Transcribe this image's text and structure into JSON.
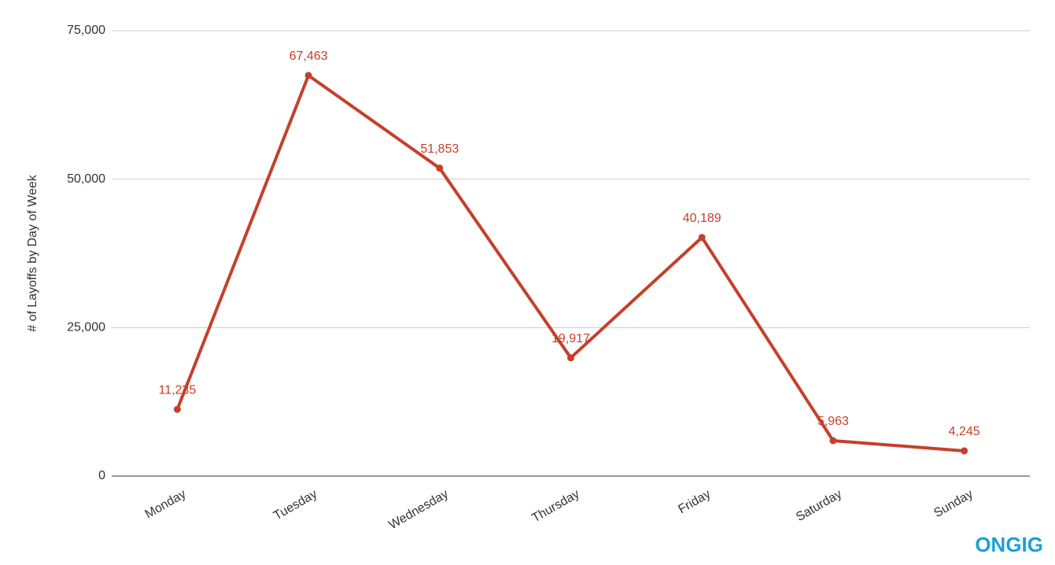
{
  "chart_data": {
    "type": "line",
    "y_label": "# of Layoffs by Day of Week",
    "categories": [
      "Monday",
      "Tuesday",
      "Wednesday",
      "Thursday",
      "Friday",
      "Saturday",
      "Sunday"
    ],
    "series": [
      {
        "name": "Layoffs",
        "color": "#c5402a",
        "values": [
          11235,
          67463,
          51853,
          19917,
          40189,
          5963,
          4245
        ],
        "value_labels": [
          "11,235",
          "67,463",
          "51,853",
          "19,917",
          "40,189",
          "5,963",
          "4,245"
        ]
      }
    ],
    "ylim": [
      0,
      75000
    ],
    "yticks": [
      0,
      {
        "value": 25000,
        "label": "25,000"
      },
      {
        "value": 50000,
        "label": "50,000"
      },
      {
        "value": 75000,
        "label": "75,000"
      }
    ],
    "grid": true,
    "watermark": "ONGIG"
  }
}
